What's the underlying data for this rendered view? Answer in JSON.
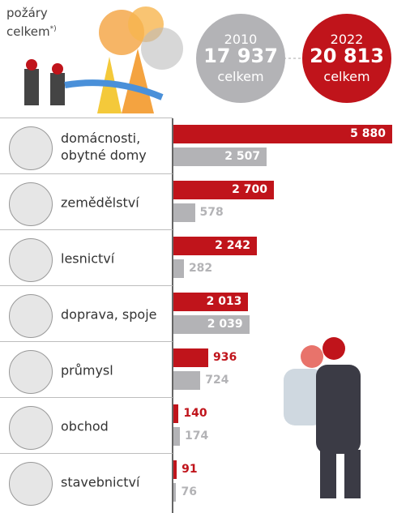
{
  "chart_data": {
    "type": "bar",
    "orientation": "horizontal",
    "title": "požáry celkem",
    "title_note": "*)",
    "totals": [
      {
        "year": "2010",
        "value": 17937,
        "value_label": "17 937",
        "unit": "celkem",
        "color": "#b3b3b6"
      },
      {
        "year": "2022",
        "value": 20813,
        "value_label": "20 813",
        "unit": "celkem",
        "color": "#c0141b"
      }
    ],
    "categories": [
      "domácnosti, obytné domy",
      "zemědělství",
      "lesnictví",
      "doprava, spoje",
      "průmysl",
      "obchod",
      "stavebnictví"
    ],
    "series": [
      {
        "name": "2022",
        "color": "#c0141b",
        "values": [
          5880,
          2700,
          2242,
          2013,
          936,
          140,
          91
        ],
        "value_labels": [
          "5 880",
          "2 700",
          "2 242",
          "2 013",
          "936",
          "140",
          "91"
        ]
      },
      {
        "name": "2010",
        "color": "#b3b3b6",
        "values": [
          2507,
          578,
          282,
          2039,
          724,
          174,
          76
        ],
        "value_labels": [
          "2 507",
          "578",
          "282",
          "2 039",
          "724",
          "174",
          "76"
        ]
      }
    ]
  }
}
